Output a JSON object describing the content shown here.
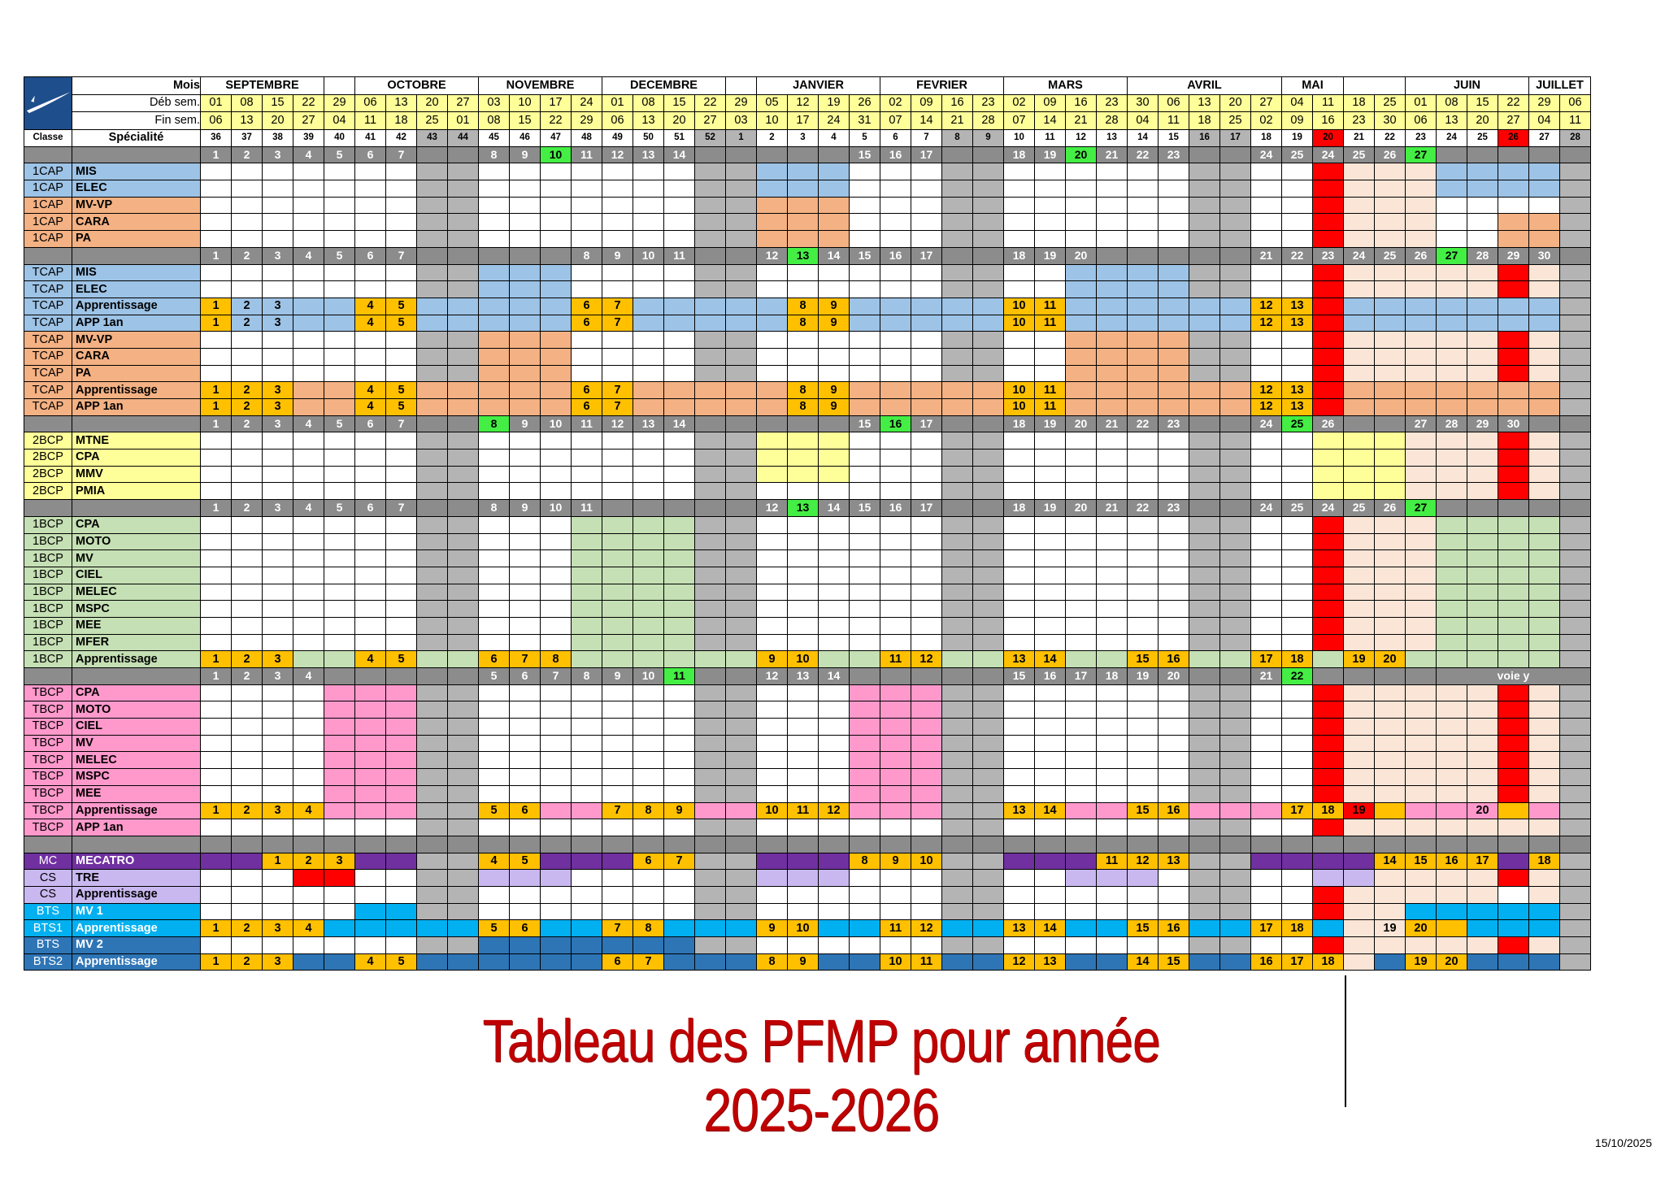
{
  "header": {
    "mois_label": "Mois",
    "deb_label": "Déb sem.",
    "fin_label": "Fin sem.",
    "classe_label": "Classe",
    "specialite_label": "Spécialité",
    "months": [
      {
        "label": "SEPTEMBRE",
        "span": 4
      },
      {
        "label": "",
        "span": 1
      },
      {
        "label": "OCTOBRE",
        "span": 4
      },
      {
        "label": "NOVEMBRE",
        "span": 4
      },
      {
        "label": "DECEMBRE",
        "span": 4
      },
      {
        "label": "",
        "span": 1
      },
      {
        "label": "JANVIER",
        "span": 4
      },
      {
        "label": "FEVRIER",
        "span": 4
      },
      {
        "label": "MARS",
        "span": 4
      },
      {
        "label": "AVRIL",
        "span": 5
      },
      {
        "label": "MAI",
        "span": 2
      },
      {
        "label": "",
        "span": 2
      },
      {
        "label": "JUIN",
        "span": 4
      },
      {
        "label": "JUILLET",
        "span": 2
      }
    ],
    "deb": [
      "01",
      "08",
      "15",
      "22",
      "29",
      "06",
      "13",
      "20",
      "27",
      "03",
      "10",
      "17",
      "24",
      "01",
      "08",
      "15",
      "22",
      "29",
      "05",
      "12",
      "19",
      "26",
      "02",
      "09",
      "16",
      "23",
      "02",
      "09",
      "16",
      "23",
      "30",
      "06",
      "13",
      "20",
      "27",
      "04",
      "11",
      "18",
      "25",
      "01",
      "08",
      "15",
      "22",
      "29",
      "06"
    ],
    "fin": [
      "06",
      "13",
      "20",
      "27",
      "04",
      "11",
      "18",
      "25",
      "01",
      "08",
      "15",
      "22",
      "29",
      "06",
      "13",
      "20",
      "27",
      "03",
      "10",
      "17",
      "24",
      "31",
      "07",
      "14",
      "21",
      "28",
      "07",
      "14",
      "21",
      "28",
      "04",
      "11",
      "18",
      "25",
      "02",
      "09",
      "16",
      "23",
      "30",
      "06",
      "13",
      "20",
      "27",
      "04",
      "11"
    ],
    "weeks": [
      "36",
      "37",
      "38",
      "39",
      "40",
      "41",
      "42",
      "43",
      "44",
      "45",
      "46",
      "47",
      "48",
      "49",
      "50",
      "51",
      "52",
      "1",
      "2",
      "3",
      "4",
      "5",
      "6",
      "7",
      "8",
      "9",
      "10",
      "11",
      "12",
      "13",
      "14",
      "15",
      "16",
      "17",
      "18",
      "19",
      "20",
      "21",
      "22",
      "23",
      "24",
      "25",
      "26",
      "27",
      "28"
    ]
  },
  "colors": {
    "W": "#ffffff",
    "G": "#b4b4b4",
    "R": "#ff0000",
    "B": "#9dc3e6",
    "O": "#f4b183",
    "P": "#fbe5d6",
    "Y": "#ffff99",
    "N": "#c5e0b4",
    "K": "#ff99cc",
    "M": "#7030a0",
    "L": "#c9b8f0",
    "S": "#00b0f0",
    "D": "#2e75b6",
    "A": "#ffc000",
    "E": "#8c8c8c",
    "header_yellow": "#ffff99",
    "title": "#c00000"
  },
  "rows": [
    {
      "type": "sep",
      "cells": [
        [
          "1",
          "2",
          "3",
          "4",
          "5",
          "6",
          "7",
          "",
          "",
          "8",
          "9",
          "10g",
          "11",
          "12",
          "13",
          "14",
          "",
          "",
          "",
          "",
          "",
          "15",
          "16",
          "17",
          "",
          "",
          "18",
          "19",
          "20g",
          "21",
          "22",
          "23",
          "",
          "",
          "24",
          "25",
          "24",
          "25",
          "26",
          "27g",
          "",
          "",
          "",
          "",
          ""
        ]
      ]
    },
    {
      "type": "data",
      "classe": "1CAP",
      "spec": "MIS",
      "cc": "B",
      "pattern": "WWWWWWWGGWWWWWWWGGBBBWWWGGWWWWWWGGWWRPPPBBBBG",
      "vals": {}
    },
    {
      "type": "data",
      "classe": "1CAP",
      "spec": "ELEC",
      "cc": "B",
      "pattern": "WWWWWWWGGWWWWWWWGGBBBWWWGGWWWWWWGGWWRPPPBBBBG",
      "vals": {}
    },
    {
      "type": "data",
      "classe": "1CAP",
      "spec": "MV-VP",
      "cc": "O",
      "pattern": "WWWWWWWGGWWWWWWWGGOOOWWWGGWWWWWWGGWWRPPPWWWWG",
      "vals": {}
    },
    {
      "type": "data",
      "classe": "1CAP",
      "spec": "CARA",
      "cc": "O",
      "pattern": "WWWWWWWGGWWWWWWWGGOOOWWWGGWWWWWWGGWWRPPPWWOOG",
      "vals": {}
    },
    {
      "type": "data",
      "classe": "1CAP",
      "spec": "PA",
      "cc": "O",
      "pattern": "WWWWWWWGGWWWWWWWGGOOOWWWGGWWWWWWGGWWRPPPWWOOG",
      "vals": {}
    },
    {
      "type": "sep",
      "cells": [
        [
          "1",
          "2",
          "3",
          "4",
          "5",
          "6",
          "7",
          "",
          "",
          "",
          "",
          "",
          "8",
          "9",
          "10",
          "11",
          "",
          "",
          "12",
          "13g",
          "14",
          "15",
          "16",
          "17",
          "",
          "",
          "18",
          "19",
          "20",
          "",
          "",
          "",
          "",
          "",
          "21",
          "22",
          "23",
          "24",
          "25",
          "26",
          "27g",
          "28",
          "29",
          "30",
          ""
        ]
      ]
    },
    {
      "type": "data",
      "classe": "TCAP",
      "spec": "MIS",
      "cc": "B",
      "pattern": "WWWWWWWGGBBBWWWWGGWWWWWWGGWWBBBBGGWWRPPPPPRPG",
      "vals": {}
    },
    {
      "type": "data",
      "classe": "TCAP",
      "spec": "ELEC",
      "cc": "B",
      "pattern": "WWWWWWWGGBBBWWWWGGWWWWWWGGWWBBBBGGWWRPPPPPRPG",
      "vals": {}
    },
    {
      "type": "data",
      "classe": "TCAP",
      "spec": "Apprentissage",
      "cc": "B",
      "pattern": "ABBBBAABBBBBAABBBBBAABBBBBAABBBBBBAARBBBBBBBG",
      "vals": {
        "0": "1",
        "1": "2",
        "2": "3",
        "5": "4",
        "6": "5",
        "12": "6",
        "13": "7",
        "19": "8",
        "20": "9",
        "26": "10",
        "27": "11",
        "34": "12",
        "35": "13"
      },
      "fill": "AAA"
    },
    {
      "type": "data",
      "classe": "TCAP",
      "spec": "APP 1an",
      "cc": "B",
      "pattern": "ABBBBAABBBBBAABBBBBAABBBBBAABBBBBBAARBBBBBBBG",
      "vals": {
        "0": "1",
        "1": "2",
        "2": "3",
        "5": "4",
        "6": "5",
        "12": "6",
        "13": "7",
        "19": "8",
        "20": "9",
        "26": "10",
        "27": "11",
        "34": "12",
        "35": "13"
      },
      "fill": "AAA"
    },
    {
      "type": "data",
      "classe": "TCAP",
      "spec": "MV-VP",
      "cc": "O",
      "pattern": "WWWWWWWGGOOOWWWWGGWWWWWWGGWWOOOOGGWWRPPPPPRPG",
      "vals": {}
    },
    {
      "type": "data",
      "classe": "TCAP",
      "spec": "CARA",
      "cc": "O",
      "pattern": "WWWWWWWGGOOOWWWWGGWWWWWWGGWWOOOOGGWWRPPPPPRPG",
      "vals": {}
    },
    {
      "type": "data",
      "classe": "TCAP",
      "spec": "PA",
      "cc": "O",
      "pattern": "WWWWWWWGGOOOWWWWGGWWWWWWGGWWOOOOGGWWRPPPPPRPG",
      "vals": {}
    },
    {
      "type": "data",
      "classe": "TCAP",
      "spec": "Apprentissage",
      "cc": "O",
      "pattern": "AAAOOAAOOOOOAAOOOOOAAOOOOOAAOOOOOOAAROOOOOOOG",
      "vals": {
        "0": "1",
        "1": "2",
        "2": "3",
        "5": "4",
        "6": "5",
        "12": "6",
        "13": "7",
        "19": "8",
        "20": "9",
        "26": "10",
        "27": "11",
        "34": "12",
        "35": "13"
      }
    },
    {
      "type": "data",
      "classe": "TCAP",
      "spec": "APP 1an",
      "cc": "O",
      "pattern": "AAAOOAAOOOOOAAOOOOOAAOOOOOAAOOOOOOAAROOOOOOOG",
      "vals": {
        "0": "1",
        "1": "2",
        "2": "3",
        "5": "4",
        "6": "5",
        "12": "6",
        "13": "7",
        "19": "8",
        "20": "9",
        "26": "10",
        "27": "11",
        "34": "12",
        "35": "13"
      }
    },
    {
      "type": "sep",
      "cells": [
        [
          "1",
          "2",
          "3",
          "4",
          "5",
          "6",
          "7",
          "",
          "",
          "8g",
          "9",
          "10",
          "11",
          "12",
          "13",
          "14",
          "",
          "",
          "",
          "",
          "",
          "15",
          "16g",
          "17",
          "",
          "",
          "18",
          "19",
          "20",
          "21",
          "22",
          "23",
          "",
          "",
          "24",
          "25g",
          "26",
          "",
          "",
          "27",
          "28",
          "29",
          "30",
          "",
          ""
        ]
      ]
    },
    {
      "type": "data",
      "classe": "2BCP",
      "spec": "MTNE",
      "cc": "Y",
      "pattern": "WWWWWWWGGWWWWWWWGGYYYWWWGGWWWWWWGGWWYYYPPPRPG",
      "vals": {}
    },
    {
      "type": "data",
      "classe": "2BCP",
      "spec": "CPA",
      "cc": "Y",
      "pattern": "WWWWWWWGGWWWWWWWGGYYYWWWGGWWWWWWGGWWYYYPPPRPG",
      "vals": {}
    },
    {
      "type": "data",
      "classe": "2BCP",
      "spec": "MMV",
      "cc": "Y",
      "pattern": "WWWWWWWGGWWWWWWWGGYYYWWWGGWWWWWWGGWWYYYPPPRPG",
      "vals": {}
    },
    {
      "type": "data",
      "classe": "2BCP",
      "spec": "PMIA",
      "cc": "Y",
      "pattern": "WWWWWWWGGWWWWWWWGGWWWWWWGGWWWWWWGGWWYYYPPPRPG",
      "vals": {}
    },
    {
      "type": "sep",
      "cells": [
        [
          "1",
          "2",
          "3",
          "4",
          "5",
          "6",
          "7",
          "",
          "",
          "8",
          "9",
          "10",
          "11",
          "",
          "",
          "",
          "",
          "",
          "12",
          "13g",
          "14",
          "15",
          "16",
          "17",
          "",
          "",
          "18",
          "19",
          "20",
          "21",
          "22",
          "23",
          "",
          "",
          "24",
          "25",
          "24",
          "25",
          "26",
          "27g",
          "",
          "",
          "",
          "",
          ""
        ]
      ]
    },
    {
      "type": "data",
      "classe": "1BCP",
      "spec": "CPA",
      "cc": "N",
      "pattern": "WWWWWWWGGWWWNNNNGGWWWWWWGGWWWWWWGGWWRPPPNNNNG",
      "vals": {}
    },
    {
      "type": "data",
      "classe": "1BCP",
      "spec": "MOTO",
      "cc": "N",
      "pattern": "WWWWWWWGGWWWNNNNGGWWWWWWGGWWWWWWGGWWRPPPNNNNG",
      "vals": {}
    },
    {
      "type": "data",
      "classe": "1BCP",
      "spec": "MV",
      "cc": "N",
      "pattern": "WWWWWWWGGWWWNNNNGGWWWWWWGGWWWWWWGGWWRPPPNNNNG",
      "vals": {}
    },
    {
      "type": "data",
      "classe": "1BCP",
      "spec": "CIEL",
      "cc": "N",
      "pattern": "WWWWWWWGGWWWNNNNGGWWWWWWGGWWWWWWGGWWRPPPNNNNG",
      "vals": {}
    },
    {
      "type": "data",
      "classe": "1BCP",
      "spec": "MELEC",
      "cc": "N",
      "pattern": "WWWWWWWGGWWWNNNNGGWWWWWWGGWWWWWWGGWWRPPPNNNNG",
      "vals": {}
    },
    {
      "type": "data",
      "classe": "1BCP",
      "spec": "MSPC",
      "cc": "N",
      "pattern": "WWWWWWWGGWWWNNNNGGWWWWWWGGWWWWWWGGWWRPPPNNNNG",
      "vals": {}
    },
    {
      "type": "data",
      "classe": "1BCP",
      "spec": "MEE",
      "cc": "N",
      "pattern": "WWWWWWWGGWWWNNNNGGWWWWWWGGWWWWWWGGWWRPPPNNNNG",
      "vals": {}
    },
    {
      "type": "data",
      "classe": "1BCP",
      "spec": "MFER",
      "cc": "N",
      "pattern": "WWWWWWWGGWWWNNNNGGWWWWWWGGWWWWWWGGWWRPPPNNNNG",
      "vals": {}
    },
    {
      "type": "data",
      "classe": "1BCP",
      "spec": "Apprentissage",
      "cc": "N",
      "pattern": "AAANNAANNAAANNNNNNAANNAANNAANNAANNAANAANNNNNG",
      "vals": {
        "0": "1",
        "1": "2",
        "2": "3",
        "5": "4",
        "6": "5",
        "9": "6",
        "10": "7",
        "11": "8",
        "18": "9",
        "19": "10",
        "22": "11",
        "23": "12",
        "26": "13",
        "27": "14",
        "30": "15",
        "31": "16",
        "34": "17",
        "35": "18",
        "37": "19",
        "38": "20"
      }
    },
    {
      "type": "sep",
      "cells": [
        [
          "1",
          "2",
          "3",
          "4",
          "",
          "",
          "",
          "",
          "",
          "5",
          "6",
          "7",
          "8",
          "9",
          "10",
          "11g",
          "",
          "",
          "12",
          "13",
          "14",
          "",
          "",
          "",
          "",
          "",
          "15",
          "16",
          "17",
          "18",
          "19",
          "20",
          "",
          "",
          "21",
          "22g",
          "",
          "",
          "",
          "",
          "voie y",
          "",
          "",
          "",
          ""
        ]
      ]
    },
    {
      "type": "data",
      "classe": "TBCP",
      "spec": "CPA",
      "cc": "K",
      "pattern": "WWWWKKKGGWWWWWWWGGWWWKKKGGWWWWWWGGWWRPPPPPRPG",
      "vals": {}
    },
    {
      "type": "data",
      "classe": "TBCP",
      "spec": "MOTO",
      "cc": "K",
      "pattern": "WWWWKKKGGWWWWWWWGGWWWKKKGGWWWWWWGGWWRPPPPPRPG",
      "vals": {}
    },
    {
      "type": "data",
      "classe": "TBCP",
      "spec": "CIEL",
      "cc": "K",
      "pattern": "WWWWKKKGGWWWWWWWGGWWWKKKGGWWWWWWGGWWRPPPPPRPG",
      "vals": {}
    },
    {
      "type": "data",
      "classe": "TBCP",
      "spec": "MV",
      "cc": "K",
      "pattern": "WWWWKKKGGWWWWWWWGGWWWKKKGGWWWWWWGGWWRPPPPPRPG",
      "vals": {}
    },
    {
      "type": "data",
      "classe": "TBCP",
      "spec": "MELEC",
      "cc": "K",
      "pattern": "WWWWKKKGGWWWWWWWGGWWWKKKGGWWWWWWGGWWRPPPPPRPG",
      "vals": {}
    },
    {
      "type": "data",
      "classe": "TBCP",
      "spec": "MSPC",
      "cc": "K",
      "pattern": "WWWWKKKGGWWWWWWWGGWWWKKKGGWWWWWWGGWWRPPPPPRPG",
      "vals": {}
    },
    {
      "type": "data",
      "classe": "TBCP",
      "spec": "MEE",
      "cc": "K",
      "pattern": "WWWWKKKGGWWWWWWWGGWWWKKKGGWWWWWWGGWWRPPPPPRPG",
      "vals": {}
    },
    {
      "type": "data",
      "classe": "TBCP",
      "spec": "Apprentissage",
      "cc": "K",
      "pattern": "AAAAKKKGGAAKKAAAKKAAAKKKGGAAKKAAKKKAARAKKKAKG",
      "vals": {
        "0": "1",
        "1": "2",
        "2": "3",
        "3": "4",
        "9": "5",
        "10": "6",
        "13": "7",
        "14": "8",
        "15": "9",
        "18": "10",
        "19": "11",
        "20": "12",
        "26": "13",
        "27": "14",
        "30": "15",
        "31": "16",
        "35": "17",
        "36": "18",
        "37": "19",
        "41": "20"
      }
    },
    {
      "type": "data",
      "classe": "TBCP",
      "spec": "APP 1an",
      "cc": "K",
      "pattern": "WWWWWWWGGWWWWWWWGGWWWWWWGGWWWWWWGGWWRPPPPPPPG",
      "vals": {}
    },
    {
      "type": "sep",
      "cells": [
        [
          "",
          "",
          "",
          "",
          "",
          "",
          "",
          "",
          "",
          "",
          "",
          "",
          "",
          "",
          "",
          "",
          "",
          "",
          "",
          "",
          "",
          "",
          "",
          "",
          "",
          "",
          "",
          "",
          "",
          "",
          "",
          "",
          "",
          "",
          "",
          "",
          "",
          "",
          "",
          "",
          "",
          "",
          "",
          "",
          ""
        ]
      ]
    },
    {
      "type": "data",
      "classe": "MC",
      "spec": "MECATRO",
      "cc": "M",
      "pattern": "MMAAAMMGGAAMMMAAGGMMMAAAGGMMMAAAGGMMMMAAAAMAG",
      "vals": {
        "2": "1",
        "3": "2",
        "4": "3",
        "9": "4",
        "10": "5",
        "14": "6",
        "15": "7",
        "21": "8",
        "22": "9",
        "23": "10",
        "29": "11",
        "30": "12",
        "31": "13",
        "38": "14",
        "39": "15",
        "40": "16",
        "41": "17",
        "43": "18"
      }
    },
    {
      "type": "data",
      "classe": "CS",
      "spec": "TRE",
      "cc": "L",
      "pattern": "WWWRRWWGGLLLWWWWGGLLLWWWGGWWLLLWGGWWLLPPPPRPG",
      "vals": {}
    },
    {
      "type": "data",
      "classe": "CS",
      "spec": "Apprentissage",
      "cc": "L",
      "pattern": "WWWWWWWGGWWWWWWWGGWWWWWWGGWWWWWWGGWWRPPPPPWPG",
      "vals": {}
    },
    {
      "type": "data",
      "classe": "BTS",
      "spec": "MV 1",
      "cc": "S",
      "pattern": "WWWWWSSGGWWWWWWWGGWWWWWWGGWWWWWWGGWWRPPSSSSSG",
      "vals": {}
    },
    {
      "type": "data",
      "classe": "BTS1",
      "spec": "Apprentissage",
      "cc": "S",
      "pattern": "AAAASSSSSAASSAASSSAASSAASSAASSAASSAASPPAASSSG",
      "vals": {
        "0": "1",
        "1": "2",
        "2": "3",
        "3": "4",
        "9": "5",
        "10": "6",
        "13": "7",
        "14": "8",
        "18": "9",
        "19": "10",
        "22": "11",
        "23": "12",
        "26": "13",
        "27": "14",
        "30": "15",
        "31": "16",
        "34": "17",
        "35": "18",
        "38": "19",
        "39": "20"
      }
    },
    {
      "type": "data",
      "classe": "BTS",
      "spec": "MV 2",
      "cc": "D",
      "pattern": "WWWWWWWGGDDDDDDDGGWWWWWWGGWWWWWWGGWWRPPPPPRPG",
      "vals": {}
    },
    {
      "type": "data",
      "classe": "BTS2",
      "spec": "Apprentissage",
      "cc": "D",
      "pattern": "AAADDAADDDDDDAADDDAADDAADDAADDAADDAAAPDAADDDG",
      "vals": {
        "0": "1",
        "1": "2",
        "2": "3",
        "5": "4",
        "6": "5",
        "13": "6",
        "14": "7",
        "18": "8",
        "19": "9",
        "22": "10",
        "23": "11",
        "26": "12",
        "27": "13",
        "30": "14",
        "31": "15",
        "34": "16",
        "35": "17",
        "36": "18",
        "39": "19",
        "40": "20"
      }
    }
  ],
  "title": "Tableau des PFMP pour année 2025-2026",
  "footer_date": "15/10/2025"
}
